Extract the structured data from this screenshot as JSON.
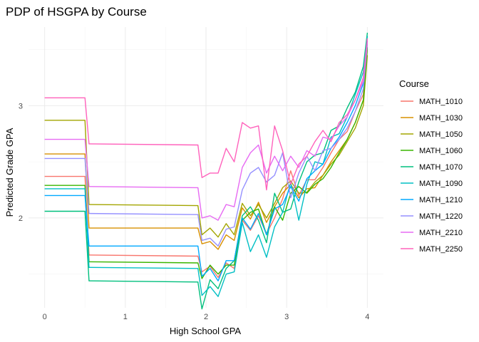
{
  "chart_data": {
    "type": "line",
    "title": "PDP of HSGPA by Course",
    "xlabel": "High School GPA",
    "ylabel": "Predicted Grade GPA",
    "xlim": [
      -0.2,
      4.2
    ],
    "ylim": [
      1.2,
      3.7
    ],
    "x_ticks": [
      0,
      1,
      2,
      3,
      4
    ],
    "y_ticks": [
      2,
      3
    ],
    "grid": true,
    "legend": {
      "title": "Course",
      "position": "right"
    },
    "x": [
      0,
      0.5,
      0.55,
      1.9,
      1.95,
      2.05,
      2.15,
      2.25,
      2.35,
      2.45,
      2.55,
      2.65,
      2.75,
      2.85,
      2.95,
      3.05,
      3.15,
      3.25,
      3.35,
      3.45,
      3.55,
      3.65,
      3.75,
      3.85,
      3.95,
      4.0
    ],
    "series": [
      {
        "name": "MATH_1010",
        "color": "#F8766D",
        "values": [
          2.37,
          2.37,
          1.67,
          1.66,
          1.52,
          1.57,
          1.47,
          1.6,
          1.55,
          1.98,
          1.89,
          2.02,
          1.86,
          2.0,
          2.17,
          2.42,
          2.2,
          2.34,
          2.34,
          2.45,
          2.58,
          2.7,
          2.77,
          2.95,
          3.1,
          3.55
        ]
      },
      {
        "name": "MATH_1030",
        "color": "#D89000",
        "values": [
          2.57,
          2.57,
          1.91,
          1.91,
          1.77,
          1.79,
          1.72,
          1.85,
          1.8,
          2.09,
          1.99,
          2.14,
          1.96,
          2.1,
          2.22,
          2.3,
          2.18,
          2.26,
          2.27,
          2.38,
          2.5,
          2.6,
          2.7,
          2.85,
          3.05,
          3.5
        ]
      },
      {
        "name": "MATH_1050",
        "color": "#A3A500",
        "values": [
          2.87,
          2.87,
          2.12,
          2.11,
          1.85,
          1.91,
          1.83,
          1.95,
          1.85,
          2.13,
          2.02,
          2.12,
          2.0,
          2.13,
          2.27,
          2.33,
          2.22,
          2.23,
          2.32,
          2.38,
          2.48,
          2.56,
          2.68,
          2.8,
          3.0,
          3.45
        ]
      },
      {
        "name": "MATH_1060",
        "color": "#39B600",
        "values": [
          2.29,
          2.29,
          1.61,
          1.6,
          1.46,
          1.58,
          1.5,
          1.58,
          1.58,
          1.98,
          2.05,
          2.08,
          1.85,
          2.1,
          1.98,
          2.22,
          2.28,
          2.22,
          2.3,
          2.35,
          2.45,
          2.58,
          2.7,
          2.85,
          3.05,
          3.52
        ]
      },
      {
        "name": "MATH_1070",
        "color": "#00BF7D",
        "values": [
          2.06,
          2.06,
          1.44,
          1.43,
          1.19,
          1.45,
          1.37,
          1.55,
          1.62,
          2.02,
          2.1,
          1.98,
          1.78,
          2.22,
          2.05,
          2.08,
          2.32,
          2.5,
          2.56,
          2.58,
          2.78,
          2.82,
          2.98,
          3.12,
          3.35,
          3.65
        ]
      },
      {
        "name": "MATH_1090",
        "color": "#00BFC4",
        "values": [
          2.26,
          2.26,
          1.56,
          1.55,
          1.31,
          1.39,
          1.3,
          1.5,
          1.52,
          1.96,
          1.7,
          1.85,
          1.65,
          1.92,
          2.05,
          2.32,
          1.98,
          2.3,
          2.5,
          2.48,
          2.72,
          2.75,
          2.9,
          3.1,
          3.3,
          3.62
        ]
      },
      {
        "name": "MATH_1210",
        "color": "#00A9FF",
        "values": [
          2.2,
          2.2,
          1.75,
          1.75,
          1.48,
          1.55,
          1.44,
          1.62,
          1.62,
          2.0,
          1.9,
          2.04,
          1.85,
          2.08,
          2.12,
          2.28,
          2.15,
          2.35,
          2.42,
          2.48,
          2.62,
          2.72,
          2.85,
          3.0,
          3.2,
          3.58
        ]
      },
      {
        "name": "MATH_1220",
        "color": "#9590FF",
        "values": [
          2.53,
          2.53,
          2.04,
          2.03,
          1.8,
          1.82,
          1.75,
          1.9,
          1.92,
          2.25,
          2.4,
          2.45,
          2.32,
          2.38,
          2.58,
          2.18,
          2.4,
          2.55,
          2.42,
          2.6,
          2.62,
          2.7,
          2.8,
          2.95,
          3.15,
          3.55
        ]
      },
      {
        "name": "MATH_2210",
        "color": "#E76BF3",
        "values": [
          2.7,
          2.7,
          2.28,
          2.27,
          2.0,
          2.02,
          1.98,
          2.12,
          2.1,
          2.45,
          2.58,
          2.65,
          2.4,
          2.55,
          2.42,
          2.55,
          2.45,
          2.6,
          2.55,
          2.72,
          2.7,
          2.82,
          2.9,
          3.05,
          3.22,
          3.58
        ]
      },
      {
        "name": "MATH_2250",
        "color": "#FF62BC",
        "values": [
          3.07,
          3.07,
          2.66,
          2.65,
          2.36,
          2.4,
          2.4,
          2.62,
          2.5,
          2.85,
          2.8,
          2.82,
          2.25,
          2.82,
          2.6,
          2.3,
          2.48,
          2.55,
          2.68,
          2.78,
          2.68,
          2.85,
          2.92,
          3.05,
          3.25,
          3.6
        ]
      }
    ]
  }
}
